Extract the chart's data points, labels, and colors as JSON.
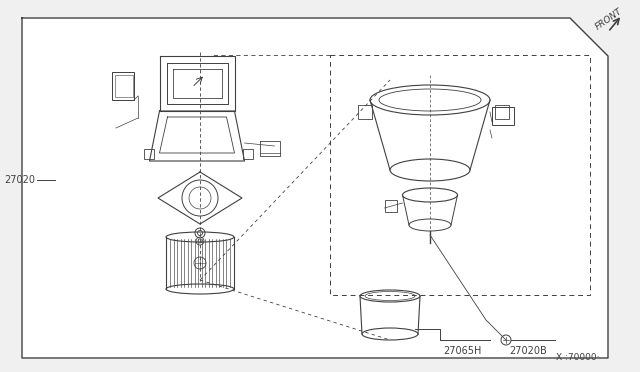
{
  "bg_color": "#f0f0f0",
  "box_fill": "#ffffff",
  "lc": "#404040",
  "lc_thin": "#555555",
  "label_27020": "27020",
  "label_27065H": "27065H",
  "label_27020B": "27020B",
  "label_x70000": "X :70000·",
  "label_front": "FRONT"
}
